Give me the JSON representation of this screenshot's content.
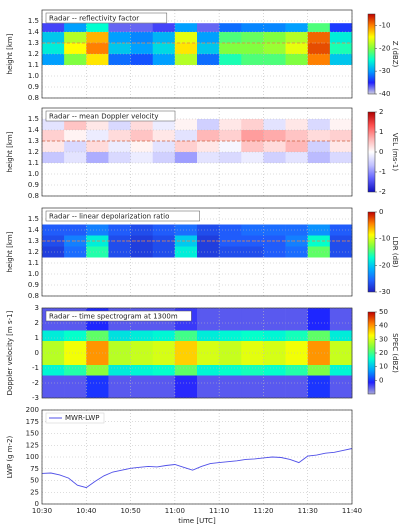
{
  "chart_data": [
    {
      "type": "heatmap",
      "title": "Radar -- reflectivity factor",
      "y_label": "height [km]",
      "ylim": [
        0.8,
        1.6
      ],
      "yticks": [
        0.8,
        0.9,
        {
          "value": 1,
          "label": "1.0"
        },
        1.1,
        1.2,
        1.3,
        1.4,
        1.5
      ],
      "x_bins": [
        "10:30",
        "10:35",
        "10:40",
        "10:45",
        "10:50",
        "10:55",
        "11:00",
        "11:05",
        "11:10",
        "11:15",
        "11:20",
        "11:25",
        "11:30",
        "11:35",
        "11:40"
      ],
      "y_bins": [
        1.1,
        1.2,
        1.3,
        1.4,
        1.48
      ],
      "values": [
        [
          -30,
          -20,
          -14,
          -32,
          -33,
          -30,
          -18,
          -32,
          -24,
          -22,
          -22,
          -20,
          -10,
          -28
        ],
        [
          -26,
          -15,
          -10,
          -28,
          -30,
          -27,
          -14,
          -28,
          -20,
          -20,
          -19,
          -16,
          -8,
          -24
        ],
        [
          -28,
          -18,
          -12,
          -30,
          -31,
          -29,
          -16,
          -30,
          -22,
          -21,
          -20,
          -18,
          -9,
          -26
        ],
        [
          -36,
          -30,
          -25,
          -37,
          -37,
          -36,
          -30,
          -37,
          -32,
          -31,
          -31,
          -30,
          -22,
          -34
        ]
      ],
      "reference_line": 1.3,
      "reference_color": "#f08040",
      "colormap": [
        "#d0d0e0",
        "#2020ff",
        "#00a0ff",
        "#00ffd0",
        "#80ff40",
        "#ffff00",
        "#ff8000",
        "#c00000"
      ],
      "clim": [
        -40,
        -5
      ],
      "colorbar_label": "Z (dBZ)",
      "colorbar_ticks": [
        -40,
        -30,
        -20,
        -10
      ],
      "grid": true
    },
    {
      "type": "heatmap",
      "title": "Radar -- mean Doppler velocity",
      "y_label": "height [km]",
      "ylim": [
        0.8,
        1.6
      ],
      "yticks": [
        0.8,
        0.9,
        {
          "value": 1,
          "label": "1.0"
        },
        1.1,
        1.2,
        1.3,
        1.4,
        1.5
      ],
      "x_bins": [
        "10:30",
        "10:35",
        "10:40",
        "10:45",
        "10:50",
        "10:55",
        "11:00",
        "11:05",
        "11:10",
        "11:15",
        "11:20",
        "11:25",
        "11:30",
        "11:35",
        "11:40"
      ],
      "y_bins": [
        1.1,
        1.2,
        1.3,
        1.4,
        1.5
      ],
      "values": [
        [
          -0.6,
          -0.3,
          -0.8,
          -0.4,
          -0.2,
          -0.5,
          -0.9,
          -0.3,
          -0.4,
          -0.2,
          -0.5,
          -0.3,
          -0.7,
          -0.4
        ],
        [
          0.2,
          -0.4,
          0.3,
          -0.2,
          0.1,
          -0.3,
          0.4,
          0.2,
          -0.1,
          0.5,
          0.3,
          0.6,
          -0.5,
          0.2
        ],
        [
          0.4,
          0.1,
          -0.2,
          0.3,
          0.5,
          0.2,
          -0.3,
          0.6,
          0.4,
          0.8,
          0.7,
          0.5,
          0.3,
          0.4
        ],
        [
          -0.3,
          0.5,
          0.2,
          -0.4,
          0.3,
          -0.2,
          0.1,
          -0.5,
          0.2,
          0.4,
          -0.3,
          0.2,
          -0.4,
          0.1
        ]
      ],
      "reference_line": 1.3,
      "reference_color": "#d06040",
      "colormap": [
        "#1010c0",
        "#6060ff",
        "#c0c0ff",
        "#ffffff",
        "#ffb0b0",
        "#ff5050",
        "#b00000"
      ],
      "clim": [
        -2,
        2
      ],
      "colorbar_label": "VEL (ms-1)",
      "colorbar_ticks": [
        -2,
        -1,
        0,
        1,
        2
      ],
      "grid": true
    },
    {
      "type": "heatmap",
      "title": "Radar -- linear depolarization ratio",
      "y_label": "height [km]",
      "ylim": [
        0.8,
        1.6
      ],
      "yticks": [
        0.8,
        0.9,
        {
          "value": 1,
          "label": "1.0"
        },
        1.1,
        1.2,
        1.3,
        1.4,
        1.5
      ],
      "x_bins": [
        "10:30",
        "10:35",
        "10:40",
        "10:45",
        "10:50",
        "10:55",
        "11:00",
        "11:05",
        "11:10",
        "11:15",
        "11:20",
        "11:25",
        "11:30",
        "11:35",
        "11:40"
      ],
      "y_bins": [
        1.15,
        1.25,
        1.35,
        1.45
      ],
      "values": [
        [
          -28,
          -25,
          -16,
          -27,
          -28,
          -27,
          -18,
          -28,
          -27,
          -27,
          -26,
          -25,
          -14,
          -27
        ],
        [
          -27,
          -24,
          -18,
          -27,
          -28,
          -27,
          -20,
          -28,
          -26,
          -26,
          -26,
          -24,
          -17,
          -27
        ],
        [
          -26,
          -26,
          -24,
          -26,
          -27,
          -26,
          -25,
          -27,
          -26,
          -25,
          -25,
          -25,
          -23,
          -26
        ]
      ],
      "reference_line": 1.3,
      "reference_color": "#f08040",
      "colormap": [
        "#2020c0",
        "#2060ff",
        "#00b0ff",
        "#00ffd0",
        "#80ff40",
        "#ffff00",
        "#ff8000",
        "#c00000"
      ],
      "clim": [
        -30,
        0
      ],
      "colorbar_label": "LDR (dB)",
      "colorbar_ticks": [
        -30,
        -20,
        -10,
        0
      ],
      "grid": true
    },
    {
      "type": "heatmap",
      "title": "Radar -- time spectrogram at 1300m",
      "y_label": "Doppler velocity [m s-1]",
      "ylim": [
        -3,
        3
      ],
      "yticks": [
        -3,
        -2,
        -1,
        0,
        1,
        2,
        3
      ],
      "x_bins": [
        "10:30",
        "10:35",
        "10:40",
        "10:45",
        "10:50",
        "10:55",
        "11:00",
        "11:05",
        "11:10",
        "11:15",
        "11:20",
        "11:25",
        "11:30",
        "11:35",
        "11:40"
      ],
      "y_bins": [
        -3,
        -1.5,
        -0.8,
        0.8,
        1.5,
        3
      ],
      "values": [
        [
          -5,
          -5,
          0,
          -5,
          -5,
          -5,
          -2,
          -5,
          -5,
          -5,
          -5,
          -5,
          0,
          -5
        ],
        [
          15,
          18,
          25,
          14,
          15,
          16,
          22,
          15,
          16,
          17,
          16,
          18,
          24,
          15
        ],
        [
          28,
          32,
          40,
          28,
          29,
          30,
          36,
          30,
          29,
          31,
          30,
          32,
          40,
          29
        ],
        [
          14,
          16,
          22,
          13,
          14,
          15,
          20,
          14,
          15,
          16,
          15,
          17,
          22,
          14
        ],
        [
          -5,
          -5,
          -1,
          -5,
          -5,
          -5,
          -3,
          -5,
          -5,
          -5,
          -5,
          -5,
          -1,
          -5
        ]
      ],
      "colormap": [
        "#a8a8d8",
        "#2020ff",
        "#00a0ff",
        "#00ffd0",
        "#80ff40",
        "#ffff00",
        "#ff8000",
        "#c00000"
      ],
      "clim": [
        -10,
        50
      ],
      "colorbar_label": "SPEC (dBZ)",
      "colorbar_ticks": [
        0,
        10,
        20,
        30,
        40,
        50
      ],
      "grid": true
    },
    {
      "type": "line",
      "y_label": "LWP (g m-2)",
      "x_label": "time [UTC]",
      "ylim": [
        0,
        200
      ],
      "yticks": [
        0,
        25,
        50,
        75,
        100,
        125,
        150,
        175,
        200
      ],
      "xlim": [
        "10:30",
        "11:40"
      ],
      "xticks": [
        "10:30",
        "10:40",
        "10:50",
        "11:00",
        "11:10",
        "11:20",
        "11:30",
        "11:40"
      ],
      "x": [
        "10:30",
        "10:32",
        "10:34",
        "10:36",
        "10:38",
        "10:40",
        "10:42",
        "10:44",
        "10:46",
        "10:48",
        "10:50",
        "10:52",
        "10:54",
        "10:56",
        "10:58",
        "11:00",
        "11:02",
        "11:04",
        "11:06",
        "11:08",
        "11:10",
        "11:12",
        "11:14",
        "11:16",
        "11:18",
        "11:20",
        "11:22",
        "11:24",
        "11:26",
        "11:28",
        "11:30",
        "11:32",
        "11:34",
        "11:36",
        "11:38",
        "11:40"
      ],
      "series": [
        {
          "name": "MWR-LWP",
          "color": "#5050e8",
          "values": [
            65,
            66,
            62,
            55,
            40,
            35,
            48,
            60,
            68,
            72,
            76,
            78,
            80,
            79,
            82,
            84,
            78,
            72,
            80,
            86,
            88,
            90,
            92,
            95,
            96,
            98,
            100,
            99,
            95,
            88,
            102,
            104,
            108,
            110,
            114,
            118
          ]
        }
      ],
      "legend": "upper left",
      "grid": true
    }
  ]
}
